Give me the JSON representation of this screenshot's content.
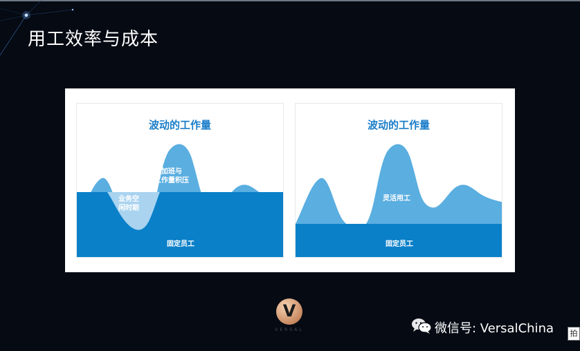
{
  "slide": {
    "title": "用工效率与成本"
  },
  "panels": [
    {
      "title": "波动的工作量",
      "labels": {
        "overtime": [
          "加班与",
          "工作量积压"
        ],
        "idle": [
          "业务空",
          "闲时期"
        ],
        "base": "固定员工"
      }
    },
    {
      "title": "波动的工作量",
      "labels": {
        "flex": "灵活用工",
        "base": "固定员工"
      }
    }
  ],
  "logo": {
    "letter": "V",
    "wordmark": "VERSAL"
  },
  "watermark": {
    "text": "微信号: VersalChina"
  },
  "corner": {
    "text": "拍"
  },
  "colors": {
    "dark_blue": "#0a80c9",
    "light_blue": "#5aaee0",
    "pale_blue": "#a9d3ef"
  }
}
